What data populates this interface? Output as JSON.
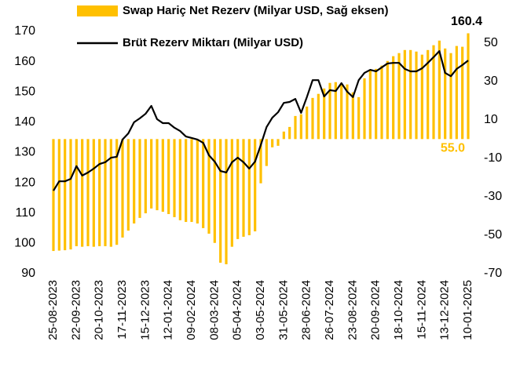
{
  "chart_data": {
    "type": "combo",
    "categories": [
      "25-08-2023",
      null,
      null,
      null,
      "22-09-2023",
      null,
      null,
      null,
      "20-10-2023",
      null,
      null,
      null,
      "17-11-2023",
      null,
      null,
      null,
      "15-12-2023",
      null,
      null,
      null,
      "12-01-2024",
      null,
      null,
      null,
      "09-02-2024",
      null,
      null,
      null,
      "08-03-2024",
      null,
      null,
      null,
      "05-04-2024",
      null,
      null,
      null,
      "03-05-2024",
      null,
      null,
      null,
      "31-05-2024",
      null,
      null,
      null,
      "28-06-2024",
      null,
      null,
      null,
      "26-07-2024",
      null,
      null,
      null,
      "23-08-2024",
      null,
      null,
      null,
      "20-09-2024",
      null,
      null,
      null,
      "18-10-2024",
      null,
      null,
      null,
      "15-11-2024",
      null,
      null,
      null,
      "13-12-2024",
      null,
      null,
      null,
      "10-01-2025"
    ],
    "series": [
      {
        "name": "Swap Hariç Net Rezerv (Milyar USD, Sağ eksen)",
        "type": "bar",
        "axis": "y2",
        "color": "#FFC000",
        "values": [
          -58.2,
          -58,
          -57.8,
          -57.4,
          -55.7,
          -56,
          -55.7,
          -56,
          -55.7,
          -55.7,
          -56,
          -55,
          -51.2,
          -47.6,
          -43.9,
          -41,
          -38.6,
          -36.1,
          -37,
          -37.8,
          -39,
          -40.6,
          -42.2,
          -43.1,
          -43.1,
          -43.9,
          -46.3,
          -49.2,
          -54,
          -64.3,
          -65.1,
          -56,
          -52,
          -50.8,
          -50,
          -48,
          -23,
          -14,
          -4.3,
          -3.5,
          3.9,
          6.3,
          12,
          12.9,
          16.9,
          21.4,
          23.5,
          26.3,
          29.2,
          29.6,
          28.8,
          28.4,
          24.3,
          21.8,
          31.6,
          35.7,
          36.5,
          38.2,
          40.6,
          43.1,
          44.7,
          46.3,
          46.3,
          45.5,
          43.9,
          46.3,
          48.8,
          51.2,
          47.1,
          44.7,
          48.4,
          48,
          55.0
        ],
        "value_labels": [
          null,
          null,
          null,
          null,
          null,
          null,
          null,
          null,
          null,
          null,
          null,
          null,
          null,
          null,
          null,
          null,
          null,
          null,
          null,
          null,
          null,
          null,
          null,
          null,
          null,
          null,
          null,
          null,
          null,
          null,
          null,
          null,
          null,
          null,
          null,
          null,
          null,
          null,
          null,
          null,
          null,
          null,
          null,
          null,
          null,
          null,
          null,
          null,
          null,
          null,
          null,
          null,
          null,
          null,
          null,
          null,
          null,
          null,
          null,
          null,
          null,
          null,
          null,
          null,
          null,
          null,
          null,
          null,
          null,
          null,
          null,
          null,
          "55.0"
        ]
      },
      {
        "name": "Brüt Rezerv Miktarı (Milyar USD)",
        "type": "line",
        "axis": "y",
        "color": "#000000",
        "values": [
          117.4,
          120.5,
          120.5,
          121.3,
          125.5,
          122.4,
          123.4,
          124.7,
          126.2,
          126.8,
          128.3,
          128.6,
          134.3,
          136.3,
          140,
          141.3,
          142.8,
          145.4,
          141,
          139.7,
          139.7,
          138.2,
          137.1,
          135.3,
          134.8,
          134.3,
          133.2,
          129.1,
          127,
          123.9,
          123.4,
          126.8,
          128.3,
          126.8,
          124.7,
          127,
          132.5,
          138.4,
          141.5,
          143.3,
          146.4,
          146.7,
          147.7,
          143.1,
          148.3,
          153.9,
          153.9,
          148.5,
          150.6,
          150.3,
          152.9,
          150.1,
          148.3,
          153.9,
          156.3,
          157.3,
          156.8,
          158.1,
          159.4,
          159.6,
          159.6,
          157.6,
          156.8,
          156.8,
          157.8,
          159.6,
          161.5,
          163.5,
          156.3,
          155.2,
          157.6,
          158.9,
          160.4
        ]
      }
    ],
    "ylim": [
      90,
      170
    ],
    "yticks": [
      90,
      100,
      110,
      120,
      130,
      140,
      150,
      160,
      170
    ],
    "y2lim": [
      -70,
      56
    ],
    "y2ticks": [
      -70,
      -50,
      -30,
      -10,
      10,
      30,
      50
    ],
    "grid": false
  }
}
